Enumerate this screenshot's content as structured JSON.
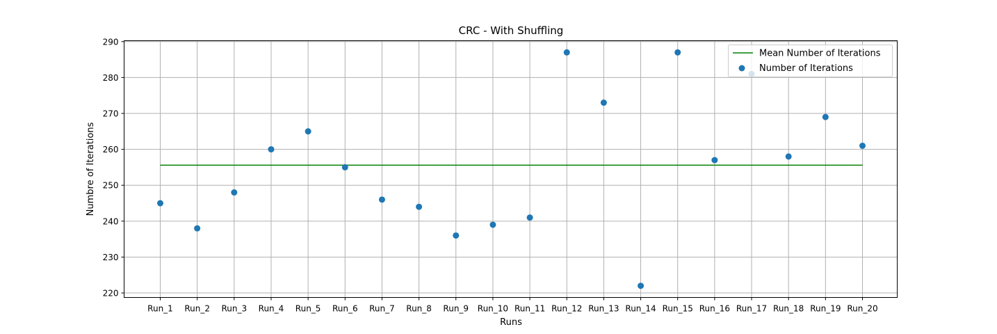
{
  "chart_data": {
    "type": "scatter",
    "title": "CRC - With Shuffling",
    "xlabel": "Runs",
    "ylabel": "Numbre of Iterations",
    "categories": [
      "Run_1",
      "Run_2",
      "Run_3",
      "Run_4",
      "Run_5",
      "Run_6",
      "Run_7",
      "Run_8",
      "Run_9",
      "Run_10",
      "Run_11",
      "Run_12",
      "Run_13",
      "Run_14",
      "Run_15",
      "Run_16",
      "Run_17",
      "Run_18",
      "Run_19",
      "Run_20"
    ],
    "series": [
      {
        "name": "Number of Iterations",
        "type": "scatter",
        "color": "#1f77b4",
        "values": [
          245,
          238,
          248,
          260,
          265,
          255,
          246,
          244,
          236,
          239,
          241,
          287,
          273,
          222,
          287,
          257,
          281,
          258,
          269,
          261
        ]
      },
      {
        "name": "Mean Number of Iterations",
        "type": "line",
        "color": "#008000",
        "value": 255.6
      }
    ],
    "yticks": [
      220,
      230,
      240,
      250,
      260,
      270,
      280,
      290
    ],
    "ylim": [
      218.75,
      290.25
    ],
    "grid": true,
    "legend_position": "top-right"
  }
}
